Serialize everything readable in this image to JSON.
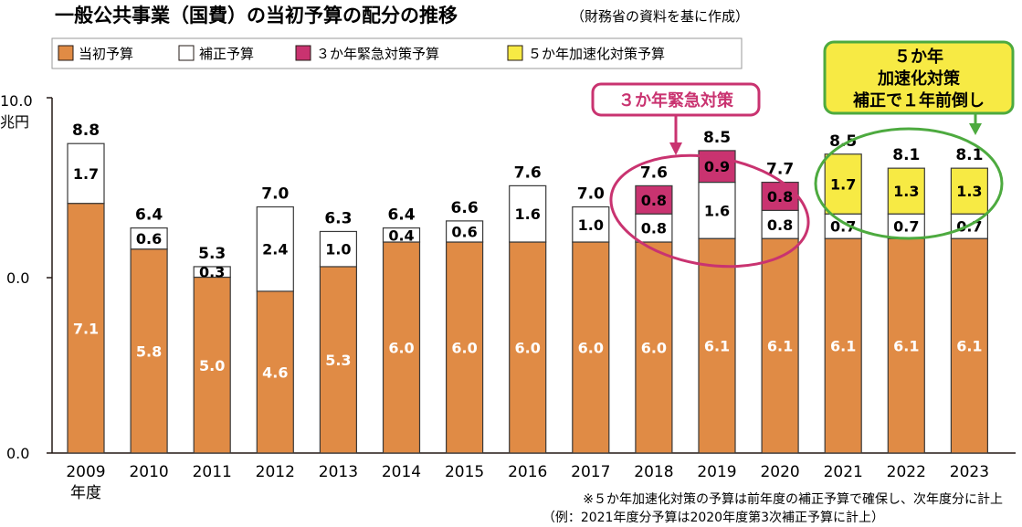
{
  "chart_data": {
    "type": "bar",
    "stacked": true,
    "title": "一般公共事業（国費）の当初予算の配分の推移",
    "subtitle": "（財務省の資料を基に作成）",
    "categories": [
      "2009",
      "2010",
      "2011",
      "2012",
      "2013",
      "2014",
      "2015",
      "2016",
      "2017",
      "2018",
      "2019",
      "2020",
      "2021",
      "2022",
      "2023"
    ],
    "x_unit_label": "年度",
    "y_unit_label": "兆円",
    "ytick_labels": [
      "10.0",
      "0.0",
      "0.0"
    ],
    "series": [
      {
        "name": "当初予算",
        "color": "#e08b45",
        "values": [
          7.1,
          5.8,
          5.0,
          4.6,
          5.3,
          6.0,
          6.0,
          6.0,
          6.0,
          6.0,
          6.1,
          6.1,
          6.1,
          6.1,
          6.1
        ]
      },
      {
        "name": "補正予算",
        "color": "#ffffff",
        "values": [
          1.7,
          0.6,
          0.3,
          2.4,
          1.0,
          0.4,
          0.6,
          1.6,
          1.0,
          0.8,
          1.6,
          0.8,
          0.7,
          0.7,
          0.7
        ]
      },
      {
        "name": "３か年緊急対策予算",
        "color": "#c93370",
        "values": [
          null,
          null,
          null,
          null,
          null,
          null,
          null,
          null,
          null,
          0.8,
          0.9,
          0.8,
          null,
          null,
          null
        ]
      },
      {
        "name": "５か年加速化対策予算",
        "color": "#f7ea44",
        "values": [
          null,
          null,
          null,
          null,
          null,
          null,
          null,
          null,
          null,
          null,
          null,
          null,
          1.7,
          1.3,
          1.3
        ]
      }
    ],
    "totals": [
      "8.8",
      "6.4",
      "5.3",
      "7.0",
      "6.3",
      "6.4",
      "6.6",
      "7.6",
      "7.0",
      "7.6",
      "8.5",
      "7.7",
      "8.5",
      "8.1",
      "8.1"
    ],
    "annotations": {
      "emergency": "３か年緊急対策",
      "accel": [
        "５か年",
        "加速化対策",
        "補正で１年前倒し"
      ]
    },
    "notes": [
      "※５か年加速化対策の予算は前年度の補正予算で確保し、次年度分に計上",
      "（例：2021年度分予算は2020年度第3次補正予算に計上）"
    ]
  }
}
